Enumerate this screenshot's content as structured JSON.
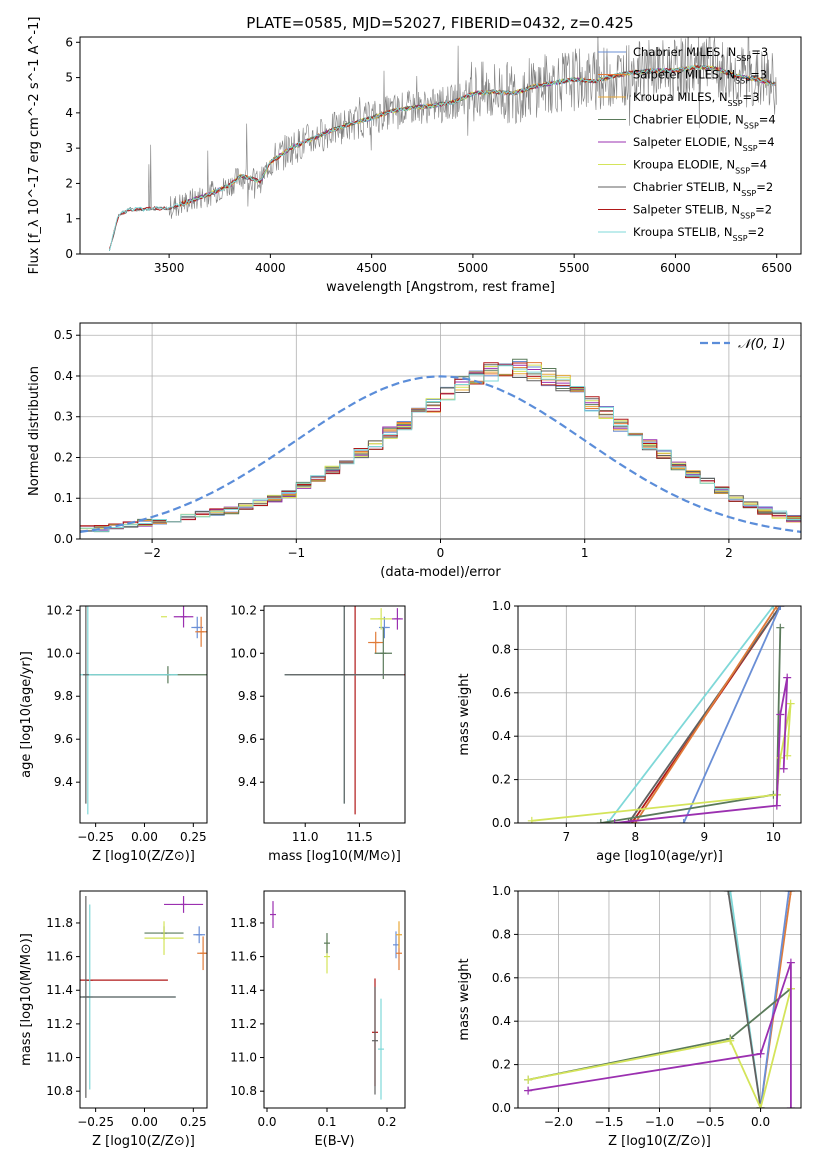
{
  "figure_title": "PLATE=0585, MJD=52027, FIBERID=0432, z=0.425",
  "colors": {
    "Chabrier MILES": "#6a8fd6",
    "Salpeter MILES": "#e07b39",
    "Kroupa MILES": "#e8a838",
    "Chabrier ELODIE": "#5a7a5a",
    "Salpeter ELODIE": "#9b30b0",
    "Kroupa ELODIE": "#d4e45a",
    "Chabrier STELIB": "#606060",
    "Salpeter STELIB": "#b01818",
    "Kroupa STELIB": "#7fd8d8",
    "gaussian": "#5b8dd9",
    "observed": "#808080"
  },
  "chart_data": [
    {
      "type": "line",
      "panel": "spectrum",
      "xlabel": "wavelength [Angstrom, rest frame]",
      "ylabel": "Flux [f_λ 10^-17 erg cm^-2 s^-1 A^-1]",
      "xlim": [
        3060,
        6620
      ],
      "ylim": [
        0,
        6.15
      ],
      "xticks": [
        3500,
        4000,
        4500,
        5000,
        5500,
        6000,
        6500
      ],
      "yticks": [
        0,
        1,
        2,
        3,
        4,
        5,
        6
      ],
      "model_trend": {
        "x": [
          3200,
          3250,
          3300,
          3400,
          3500,
          3600,
          3700,
          3800,
          3850,
          3900,
          3950,
          4000,
          4100,
          4200,
          4300,
          4400,
          4500,
          4600,
          4700,
          4800,
          4900,
          5000,
          5100,
          5200,
          5300,
          5400,
          5500,
          5600,
          5700,
          5800,
          5900,
          6000,
          6100,
          6200,
          6300,
          6400,
          6500
        ],
        "y": [
          0.0,
          1.1,
          1.25,
          1.28,
          1.3,
          1.5,
          1.7,
          1.95,
          2.2,
          2.15,
          2.05,
          2.6,
          3.0,
          3.25,
          3.5,
          3.7,
          3.85,
          4.05,
          4.15,
          4.2,
          4.3,
          4.55,
          4.6,
          4.55,
          4.75,
          4.85,
          4.95,
          4.9,
          5.05,
          5.15,
          5.2,
          5.2,
          5.3,
          5.25,
          5.05,
          4.95,
          4.8
        ]
      },
      "series_names": [
        "Chabrier MILES",
        "Salpeter MILES",
        "Kroupa MILES",
        "Chabrier ELODIE",
        "Salpeter ELODIE",
        "Kroupa ELODIE",
        "Chabrier STELIB",
        "Salpeter STELIB",
        "Kroupa STELIB"
      ],
      "legend_labels": [
        {
          "name": "Chabrier MILES",
          "n": "3"
        },
        {
          "name": "Salpeter MILES",
          "n": "3"
        },
        {
          "name": "Kroupa MILES",
          "n": "3"
        },
        {
          "name": "Chabrier ELODIE",
          "n": "4"
        },
        {
          "name": "Salpeter ELODIE",
          "n": "4"
        },
        {
          "name": "Kroupa ELODIE",
          "n": "4"
        },
        {
          "name": "Chabrier STELIB",
          "n": "2"
        },
        {
          "name": "Salpeter STELIB",
          "n": "2"
        },
        {
          "name": "Kroupa STELIB",
          "n": "2"
        }
      ],
      "legend_placement": "top-right"
    },
    {
      "type": "step-histogram",
      "panel": "residuals",
      "xlabel": "(data-model)/error",
      "ylabel": "Normed distribution",
      "xlim": [
        -2.5,
        2.5
      ],
      "ylim": [
        0,
        0.53
      ],
      "xticks": [
        -2,
        -1,
        0,
        1,
        2
      ],
      "yticks": [
        0.0,
        0.1,
        0.2,
        0.3,
        0.4,
        0.5
      ],
      "bin_edges_start": -2.5,
      "bin_width": 0.1,
      "bins": 50,
      "histogram_base": [
        0.025,
        0.025,
        0.03,
        0.035,
        0.04,
        0.045,
        0.05,
        0.055,
        0.06,
        0.065,
        0.07,
        0.08,
        0.09,
        0.1,
        0.11,
        0.13,
        0.15,
        0.17,
        0.19,
        0.21,
        0.23,
        0.26,
        0.28,
        0.31,
        0.33,
        0.36,
        0.38,
        0.4,
        0.41,
        0.42,
        0.42,
        0.41,
        0.4,
        0.38,
        0.36,
        0.33,
        0.31,
        0.28,
        0.26,
        0.23,
        0.21,
        0.18,
        0.16,
        0.14,
        0.12,
        0.1,
        0.085,
        0.07,
        0.06,
        0.05
      ],
      "gaussian": {
        "name": "N(0,1)",
        "label": "𝒩(0, 1)",
        "mean": 0,
        "sigma": 1
      },
      "grid": true,
      "legend_placement": "top-right"
    },
    {
      "type": "errorbar",
      "panel": "age-vs-Z",
      "xlabel": "Z [log10(Z/Z⊙)]",
      "ylabel": "age [log10(age/yr)]",
      "xlim": [
        -0.33,
        0.32
      ],
      "ylim": [
        9.21,
        10.22
      ],
      "xticks": [
        -0.25,
        0.0,
        0.25
      ],
      "yticks": [
        9.4,
        9.6,
        9.8,
        10.0,
        10.2
      ],
      "points": [
        {
          "series": "Chabrier MILES",
          "x": 0.27,
          "y": 10.12,
          "xerr": 0.03,
          "yerr": 0.05
        },
        {
          "series": "Salpeter MILES",
          "x": 0.29,
          "y": 10.1,
          "xerr": 0.03,
          "yerr": 0.07
        },
        {
          "series": "Kroupa ELODIE",
          "x": 0.1,
          "y": 10.17,
          "xerr": 0.0,
          "yerr": 0.0
        },
        {
          "series": "Salpeter ELODIE",
          "x": 0.2,
          "y": 10.17,
          "xerr": 0.05,
          "yerr": 0.05
        },
        {
          "series": "Chabrier ELODIE",
          "x": 0.12,
          "y": 9.9,
          "xerr": 0.42,
          "yerr": 0.04
        },
        {
          "series": "Kroupa STELIB",
          "x": -0.29,
          "y": 9.9,
          "xerr": 0.46,
          "yerr": 0.65
        },
        {
          "series": "Chabrier STELIB",
          "x": -0.3,
          "y": 9.9,
          "xerr": 0.0,
          "yerr": 0.6
        }
      ]
    },
    {
      "type": "errorbar",
      "panel": "age-vs-mass",
      "xlabel": "mass [log10(M/M⊙)]",
      "ylabel": "",
      "xlim": [
        10.62,
        11.92
      ],
      "ylim": [
        9.21,
        10.22
      ],
      "xticks": [
        11.0,
        11.5
      ],
      "yticks": [
        9.4,
        9.6,
        9.8,
        10.0,
        10.2
      ],
      "points": [
        {
          "series": "Chabrier MILES",
          "x": 11.73,
          "y": 10.12,
          "xerr": 0.05,
          "yerr": 0.05
        },
        {
          "series": "Salpeter MILES",
          "x": 11.65,
          "y": 10.05,
          "xerr": 0.07,
          "yerr": 0.05
        },
        {
          "series": "Kroupa ELODIE",
          "x": 11.7,
          "y": 10.16,
          "xerr": 0.1,
          "yerr": 0.05
        },
        {
          "series": "Salpeter ELODIE",
          "x": 11.85,
          "y": 10.16,
          "xerr": 0.05,
          "yerr": 0.05
        },
        {
          "series": "Chabrier ELODIE",
          "x": 11.72,
          "y": 10.0,
          "xerr": 0.08,
          "yerr": 0.12
        },
        {
          "series": "Salpeter STELIB",
          "x": 11.46,
          "y": 9.9,
          "xerr": 0.6,
          "yerr": 0.65
        },
        {
          "series": "Kroupa STELIB",
          "x": 11.36,
          "y": 9.9,
          "xerr": 0.55,
          "yerr": 0.6
        },
        {
          "series": "Chabrier STELIB",
          "x": 11.36,
          "y": 9.9,
          "xerr": 0.55,
          "yerr": 0.6
        }
      ]
    },
    {
      "type": "line",
      "panel": "weight-vs-age",
      "xlabel": "age [log10(age/yr)]",
      "ylabel": "mass weight",
      "xlim": [
        6.3,
        10.4
      ],
      "ylim": [
        0,
        1.0
      ],
      "xticks": [
        7,
        8,
        9,
        10
      ],
      "yticks": [
        0.0,
        0.2,
        0.4,
        0.6,
        0.8,
        1.0
      ],
      "series": [
        {
          "name": "Kroupa STELIB",
          "x": [
            7.6,
            10.0
          ],
          "y": [
            0.0,
            1.0
          ]
        },
        {
          "name": "Salpeter STELIB",
          "x": [
            7.95,
            10.1
          ],
          "y": [
            0.0,
            1.0
          ]
        },
        {
          "name": "Chabrier STELIB",
          "x": [
            7.9,
            10.1
          ],
          "y": [
            0.0,
            1.0
          ]
        },
        {
          "name": "Salpeter MILES",
          "x": [
            8.0,
            10.05
          ],
          "y": [
            0.0,
            1.0
          ]
        },
        {
          "name": "Chabrier MILES",
          "x": [
            8.7,
            10.1
          ],
          "y": [
            0.0,
            1.0
          ]
        },
        {
          "name": "Chabrier ELODIE",
          "x": [
            7.5,
            10.0,
            10.05,
            10.1
          ],
          "y": [
            0.0,
            0.13,
            0.13,
            0.9
          ]
        },
        {
          "name": "Kroupa ELODIE",
          "x": [
            6.5,
            10.05,
            10.1,
            10.25,
            10.2
          ],
          "y": [
            0.01,
            0.13,
            0.3,
            0.55,
            0.31
          ]
        },
        {
          "name": "Salpeter ELODIE",
          "x": [
            7.7,
            10.05,
            10.1,
            10.2,
            10.15
          ],
          "y": [
            0.0,
            0.08,
            0.5,
            0.67,
            0.25
          ]
        }
      ],
      "grid": true
    },
    {
      "type": "errorbar",
      "panel": "mass-vs-Z",
      "xlabel": "Z [log10(Z/Z⊙)]",
      "ylabel": "mass [log10(M/M⊙)]",
      "xlim": [
        -0.33,
        0.32
      ],
      "ylim": [
        10.7,
        11.99
      ],
      "xticks": [
        -0.25,
        0.0,
        0.25
      ],
      "yticks": [
        10.8,
        11.0,
        11.2,
        11.4,
        11.6,
        11.8
      ],
      "points": [
        {
          "series": "Salpeter ELODIE",
          "x": 0.2,
          "y": 11.91,
          "xerr": 0.1,
          "yerr": 0.05
        },
        {
          "series": "Chabrier ELODIE",
          "x": 0.1,
          "y": 11.74,
          "xerr": 0.1,
          "yerr": 0.04
        },
        {
          "series": "Kroupa ELODIE",
          "x": 0.1,
          "y": 11.71,
          "xerr": 0.1,
          "yerr": 0.1
        },
        {
          "series": "Chabrier MILES",
          "x": 0.28,
          "y": 11.73,
          "xerr": 0.03,
          "yerr": 0.05
        },
        {
          "series": "Salpeter MILES",
          "x": 0.3,
          "y": 11.62,
          "xerr": 0.03,
          "yerr": 0.1
        },
        {
          "series": "Salpeter STELIB",
          "x": -0.28,
          "y": 11.46,
          "xerr": 0.4,
          "yerr": 0.0
        },
        {
          "series": "Kroupa STELIB",
          "x": -0.28,
          "y": 11.36,
          "xerr": 0.44,
          "yerr": 0.55
        },
        {
          "series": "Chabrier STELIB",
          "x": -0.3,
          "y": 11.36,
          "xerr": 0.46,
          "yerr": 0.6
        }
      ]
    },
    {
      "type": "errorbar",
      "panel": "mass-vs-EBV",
      "xlabel": "E(B-V)",
      "ylabel": "",
      "xlim": [
        -0.005,
        0.23
      ],
      "ylim": [
        10.7,
        11.99
      ],
      "xticks": [
        0.0,
        0.1,
        0.2
      ],
      "yticks": [
        10.8,
        11.0,
        11.2,
        11.4,
        11.6,
        11.8
      ],
      "points": [
        {
          "series": "Salpeter ELODIE",
          "x": 0.01,
          "y": 11.85,
          "xerr": 0.0,
          "yerr": 0.08
        },
        {
          "series": "Kroupa ELODIE",
          "x": 0.1,
          "y": 11.6,
          "xerr": 0.0,
          "yerr": 0.1
        },
        {
          "series": "Chabrier ELODIE",
          "x": 0.1,
          "y": 11.68,
          "xerr": 0.0,
          "yerr": 0.06
        },
        {
          "series": "Chabrier MILES",
          "x": 0.215,
          "y": 11.67,
          "xerr": 0.0,
          "yerr": 0.08
        },
        {
          "series": "Salpeter MILES",
          "x": 0.22,
          "y": 11.62,
          "xerr": 0.0,
          "yerr": 0.1
        },
        {
          "series": "Salpeter STELIB",
          "x": 0.18,
          "y": 11.15,
          "xerr": 0.0,
          "yerr": 0.32
        },
        {
          "series": "Chabrier STELIB",
          "x": 0.18,
          "y": 11.1,
          "xerr": 0.0,
          "yerr": 0.32
        },
        {
          "series": "Kroupa STELIB",
          "x": 0.19,
          "y": 11.05,
          "xerr": 0.0,
          "yerr": 0.3
        },
        {
          "series": "Kroupa MILES",
          "x": 0.22,
          "y": 11.73,
          "xerr": 0.0,
          "yerr": 0.08
        }
      ]
    },
    {
      "type": "line",
      "panel": "weight-vs-Z",
      "xlabel": "Z [log10(Z/Z⊙)]",
      "ylabel": "mass weight",
      "xlim": [
        -2.4,
        0.4
      ],
      "ylim": [
        0,
        1.0
      ],
      "xticks": [
        -2.0,
        -1.5,
        -1.0,
        -0.5,
        0.0
      ],
      "yticks": [
        0.0,
        0.2,
        0.4,
        0.6,
        0.8,
        1.0
      ],
      "series": [
        {
          "name": "Kroupa STELIB",
          "x": [
            -0.3,
            0.0
          ],
          "y": [
            1.0,
            0.0
          ]
        },
        {
          "name": "Chabrier STELIB",
          "x": [
            -0.32,
            0.0
          ],
          "y": [
            1.0,
            0.0
          ]
        },
        {
          "name": "Salpeter MILES",
          "x": [
            0.0,
            0.3
          ],
          "y": [
            0.0,
            1.0
          ]
        },
        {
          "name": "Chabrier MILES",
          "x": [
            0.0,
            0.28
          ],
          "y": [
            0.0,
            1.0
          ]
        },
        {
          "name": "Chabrier ELODIE",
          "x": [
            -2.3,
            -0.3,
            0.3
          ],
          "y": [
            0.13,
            0.32,
            0.55
          ]
        },
        {
          "name": "Kroupa ELODIE",
          "x": [
            -2.3,
            -0.3,
            0.0,
            0.3
          ],
          "y": [
            0.13,
            0.31,
            0.0,
            0.55
          ]
        },
        {
          "name": "Salpeter ELODIE",
          "x": [
            -2.3,
            0.0,
            0.3,
            0.3
          ],
          "y": [
            0.08,
            0.25,
            0.67,
            0.0
          ]
        }
      ],
      "grid": true
    }
  ]
}
